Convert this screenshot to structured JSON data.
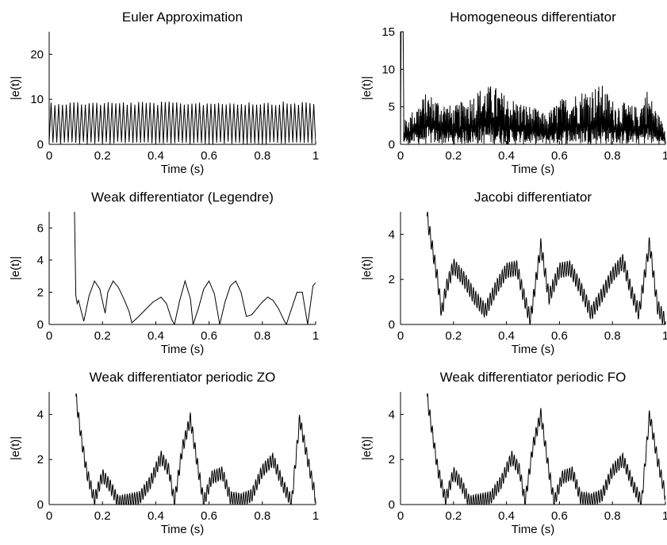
{
  "chart_data": [
    {
      "type": "line",
      "title": "Euler Approximation",
      "xlabel": "Time (s)",
      "ylabel": "|e(t)|",
      "xlim": [
        0,
        1
      ],
      "ylim": [
        0,
        25
      ],
      "xticks": [
        "0",
        "0.2",
        "0.4",
        "0.6",
        "0.8",
        "1"
      ],
      "yticks": [
        "0",
        "10",
        "20"
      ],
      "grid": false,
      "signal": {
        "kind": "oscillation",
        "cycles": 70,
        "min": 0,
        "max": 9.5,
        "start_x": 0
      }
    },
    {
      "type": "line",
      "title": "Homogeneous differentiator",
      "xlabel": "Time (s)",
      "ylabel": "|e(t)|",
      "xlim": [
        0,
        1
      ],
      "ylim": [
        0,
        15
      ],
      "xticks": [
        "0",
        "0.2",
        "0.4",
        "0.6",
        "0.8",
        "1"
      ],
      "yticks": [
        "0",
        "5",
        "10",
        "15"
      ],
      "grid": false,
      "signal": {
        "kind": "noisy",
        "initial_spike": 15,
        "start_x": 0,
        "envelope_x": [
          0.01,
          0.1,
          0.2,
          0.3,
          0.35,
          0.4,
          0.5,
          0.55,
          0.6,
          0.7,
          0.76,
          0.8,
          0.9,
          0.93,
          1.0
        ],
        "envelope_y": [
          3,
          7,
          5,
          7.5,
          8,
          6.5,
          5,
          4,
          6,
          7.5,
          8,
          6,
          5,
          7.5,
          2
        ]
      }
    },
    {
      "type": "line",
      "title": "Weak differentiator (Legendre)",
      "xlabel": "Time (s)",
      "ylabel": "|e(t)|",
      "xlim": [
        0,
        1
      ],
      "ylim": [
        0,
        7
      ],
      "xticks": [
        "0",
        "0.2",
        "0.4",
        "0.6",
        "0.8",
        "1"
      ],
      "yticks": [
        "0",
        "2",
        "4",
        "6"
      ],
      "grid": false,
      "x": [
        0.095,
        0.1,
        0.105,
        0.11,
        0.13,
        0.15,
        0.17,
        0.19,
        0.21,
        0.22,
        0.24,
        0.26,
        0.28,
        0.3,
        0.31,
        0.33,
        0.36,
        0.39,
        0.42,
        0.44,
        0.46,
        0.47,
        0.49,
        0.51,
        0.53,
        0.54,
        0.56,
        0.58,
        0.6,
        0.62,
        0.64,
        0.66,
        0.68,
        0.7,
        0.72,
        0.74,
        0.76,
        0.78,
        0.8,
        0.82,
        0.84,
        0.86,
        0.88,
        0.89,
        0.91,
        0.93,
        0.95,
        0.97,
        0.99,
        1.0
      ],
      "y": [
        7,
        1.8,
        1.3,
        1.5,
        0.2,
        1.8,
        2.7,
        2.2,
        0.7,
        2.0,
        2.7,
        2.3,
        1.6,
        0.8,
        0.1,
        0.4,
        0.9,
        1.4,
        1.7,
        1.3,
        0.3,
        0.0,
        1.5,
        2.7,
        1.6,
        0.0,
        1.0,
        2.2,
        2.7,
        1.9,
        0.0,
        1.4,
        2.4,
        2.7,
        2.0,
        0.5,
        0.6,
        1.0,
        1.4,
        1.7,
        1.5,
        1.0,
        0.3,
        0.0,
        1.0,
        2.0,
        2.0,
        0.0,
        2.4,
        2.6
      ]
    },
    {
      "type": "line",
      "title": "Jacobi differentiator",
      "xlabel": "Time (s)",
      "ylabel": "|e(t)|",
      "xlim": [
        0,
        1
      ],
      "ylim": [
        0,
        5
      ],
      "xticks": [
        "0",
        "0.2",
        "0.4",
        "0.6",
        "0.8",
        "1"
      ],
      "yticks": [
        "0",
        "2",
        "4"
      ],
      "grid": false,
      "signal": {
        "kind": "smooth-ripple",
        "start_x": 0.1,
        "amp": 0.35,
        "cycles": 110,
        "x": [
          0.1,
          0.12,
          0.14,
          0.155,
          0.17,
          0.2,
          0.24,
          0.28,
          0.32,
          0.36,
          0.4,
          0.44,
          0.46,
          0.49,
          0.53,
          0.56,
          0.6,
          0.64,
          0.68,
          0.72,
          0.76,
          0.8,
          0.84,
          0.87,
          0.9,
          0.94,
          0.97,
          1.0
        ],
        "y": [
          4.8,
          3.4,
          2.0,
          0.5,
          1.5,
          2.6,
          2.0,
          1.2,
          0.6,
          1.6,
          2.4,
          2.5,
          1.5,
          0.2,
          3.5,
          1.2,
          2.4,
          2.5,
          1.6,
          0.5,
          1.3,
          2.2,
          2.8,
          1.5,
          0.5,
          3.6,
          0.8,
          0.1
        ]
      }
    },
    {
      "type": "line",
      "title": "Weak differentiator periodic ZO",
      "xlabel": "Time (s)",
      "ylabel": "|e(t)|",
      "xlim": [
        0,
        1
      ],
      "ylim": [
        0,
        5
      ],
      "xticks": [
        "0",
        "0.2",
        "0.4",
        "0.6",
        "0.8",
        "1"
      ],
      "yticks": [
        "0",
        "2",
        "4"
      ],
      "grid": false,
      "signal": {
        "kind": "smooth-ripple",
        "start_x": 0.1,
        "amp": 0.3,
        "cycles": 110,
        "x": [
          0.1,
          0.12,
          0.14,
          0.17,
          0.2,
          0.23,
          0.26,
          0.3,
          0.34,
          0.38,
          0.42,
          0.45,
          0.47,
          0.5,
          0.53,
          0.56,
          0.58,
          0.61,
          0.65,
          0.68,
          0.72,
          0.76,
          0.8,
          0.84,
          0.88,
          0.91,
          0.94,
          0.97,
          1.0
        ],
        "y": [
          4.8,
          3.0,
          1.5,
          0.2,
          1.3,
          0.8,
          0.1,
          0.2,
          0.3,
          1.0,
          2.1,
          1.5,
          0.1,
          2.5,
          3.8,
          1.5,
          0.1,
          1.2,
          1.4,
          0.3,
          0.2,
          0.4,
          1.5,
          2.0,
          0.8,
          0.1,
          3.8,
          2.0,
          0.3
        ]
      }
    },
    {
      "type": "line",
      "title": "Weak differentiator periodic FO",
      "xlabel": "Time (s)",
      "ylabel": "|e(t)|",
      "xlim": [
        0,
        1
      ],
      "ylim": [
        0,
        5
      ],
      "xticks": [
        "0",
        "0.2",
        "0.4",
        "0.6",
        "0.8",
        "1"
      ],
      "yticks": [
        "0",
        "2",
        "4"
      ],
      "grid": false,
      "signal": {
        "kind": "smooth-ripple",
        "start_x": 0.1,
        "amp": 0.3,
        "cycles": 110,
        "x": [
          0.1,
          0.12,
          0.14,
          0.17,
          0.2,
          0.23,
          0.26,
          0.3,
          0.34,
          0.38,
          0.42,
          0.45,
          0.47,
          0.5,
          0.53,
          0.56,
          0.58,
          0.61,
          0.65,
          0.68,
          0.72,
          0.76,
          0.8,
          0.84,
          0.88,
          0.91,
          0.94,
          0.97,
          1.0
        ],
        "y": [
          4.8,
          3.2,
          1.6,
          0.2,
          1.4,
          0.9,
          0.1,
          0.2,
          0.3,
          1.0,
          2.1,
          1.5,
          0.1,
          2.6,
          4.0,
          1.5,
          0.1,
          1.2,
          1.4,
          0.3,
          0.2,
          0.4,
          1.5,
          2.0,
          0.8,
          0.1,
          4.0,
          2.0,
          0.4
        ]
      }
    }
  ]
}
